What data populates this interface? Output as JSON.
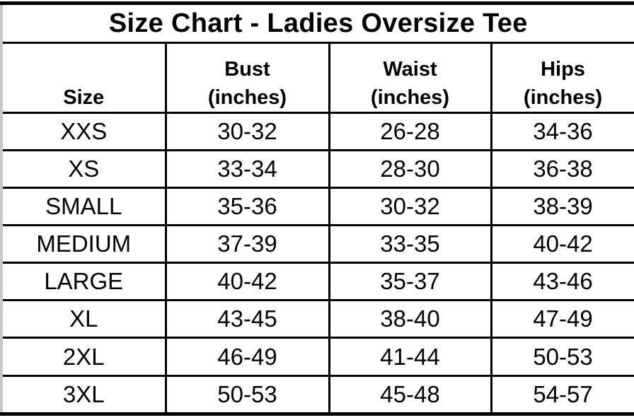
{
  "title": "Size Chart - Ladies Oversize Tee",
  "table": {
    "columns": [
      {
        "key": "size",
        "label": "Size"
      },
      {
        "key": "bust",
        "label": "Bust\n(inches)"
      },
      {
        "key": "waist",
        "label": "Waist\n(inches)"
      },
      {
        "key": "hips",
        "label": "Hips\n(inches)"
      }
    ],
    "rows": [
      {
        "size": "XXS",
        "bust": "30-32",
        "waist": "26-28",
        "hips": "34-36"
      },
      {
        "size": "XS",
        "bust": "33-34",
        "waist": "28-30",
        "hips": "36-38"
      },
      {
        "size": "SMALL",
        "bust": "35-36",
        "waist": "30-32",
        "hips": "38-39"
      },
      {
        "size": "MEDIUM",
        "bust": "37-39",
        "waist": "33-35",
        "hips": "40-42"
      },
      {
        "size": "LARGE",
        "bust": "40-42",
        "waist": "35-37",
        "hips": "43-46"
      },
      {
        "size": "XL",
        "bust": "43-45",
        "waist": "38-40",
        "hips": "47-49"
      },
      {
        "size": "2XL",
        "bust": "46-49",
        "waist": "41-44",
        "hips": "50-53"
      },
      {
        "size": "3XL",
        "bust": "50-53",
        "waist": "45-48",
        "hips": "54-57"
      }
    ]
  },
  "colors": {
    "border": "#000000",
    "text": "#000000",
    "background": "#ffffff"
  }
}
